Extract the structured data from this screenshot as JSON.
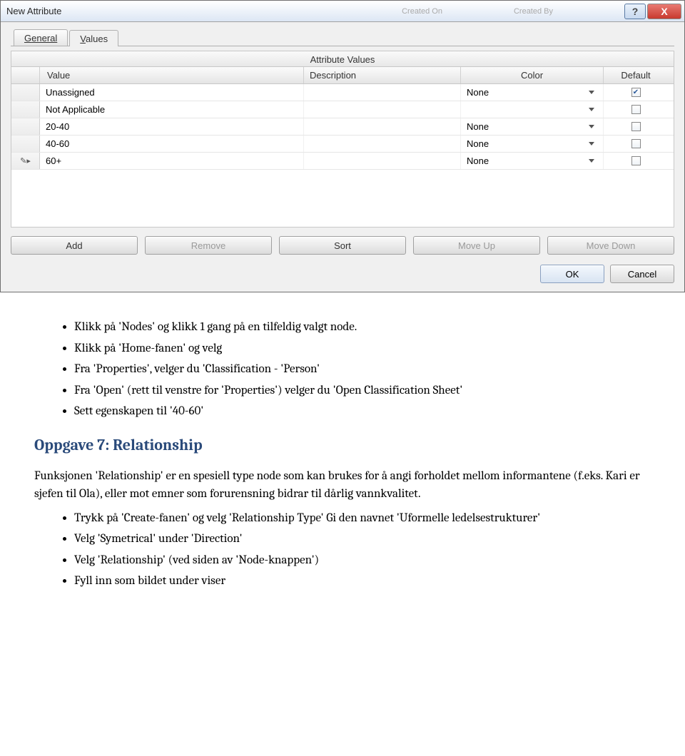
{
  "dialog": {
    "title": "New Attribute",
    "ghost1": "Created On",
    "ghost2": "Created By",
    "help_tooltip": "?",
    "close_tooltip": "X",
    "tabs": {
      "general": "General",
      "values": "Values"
    },
    "section_title": "Attribute Values",
    "columns": {
      "value": "Value",
      "description": "Description",
      "color": "Color",
      "default": "Default"
    },
    "rows": [
      {
        "indicator": "",
        "value": "Unassigned",
        "description": "",
        "color": "None",
        "default_checked": true
      },
      {
        "indicator": "",
        "value": "Not Applicable",
        "description": "",
        "color": "",
        "default_checked": false
      },
      {
        "indicator": "",
        "value": "20-40",
        "description": "",
        "color": "None",
        "default_checked": false
      },
      {
        "indicator": "",
        "value": "40-60",
        "description": "",
        "color": "None",
        "default_checked": false
      },
      {
        "indicator": "✎▸",
        "value": "60+",
        "description": "",
        "color": "None",
        "default_checked": false
      }
    ],
    "buttons": {
      "add": "Add",
      "remove": "Remove",
      "sort": "Sort",
      "moveup": "Move Up",
      "movedown": "Move Down"
    },
    "ok": "OK",
    "cancel": "Cancel"
  },
  "doc": {
    "bullets1": [
      "Klikk på 'Nodes' og klikk 1 gang på en tilfeldig valgt node.",
      "Klikk på 'Home-fanen' og velg",
      "Fra 'Properties', velger du 'Classification - 'Person'",
      "Fra 'Open' (rett til venstre for 'Properties') velger du 'Open Classification Sheet'",
      "Sett egenskapen til '40-60'"
    ],
    "heading": "Oppgave 7: Relationship",
    "para": "Funksjonen 'Relationship' er en spesiell type node som kan brukes for å angi forholdet mellom informantene (f.eks. Kari er sjefen til Ola), eller mot emner som forurensning bidrar til dårlig vannkvalitet.",
    "bullets2": [
      "Trykk på 'Create-fanen' og velg 'Relationship Type' Gi den navnet 'Uformelle ledelsestrukturer'",
      "Velg 'Symetrical' under 'Direction'",
      "Velg 'Relationship' (ved siden av 'Node-knappen')",
      "Fyll inn som bildet under viser"
    ]
  }
}
